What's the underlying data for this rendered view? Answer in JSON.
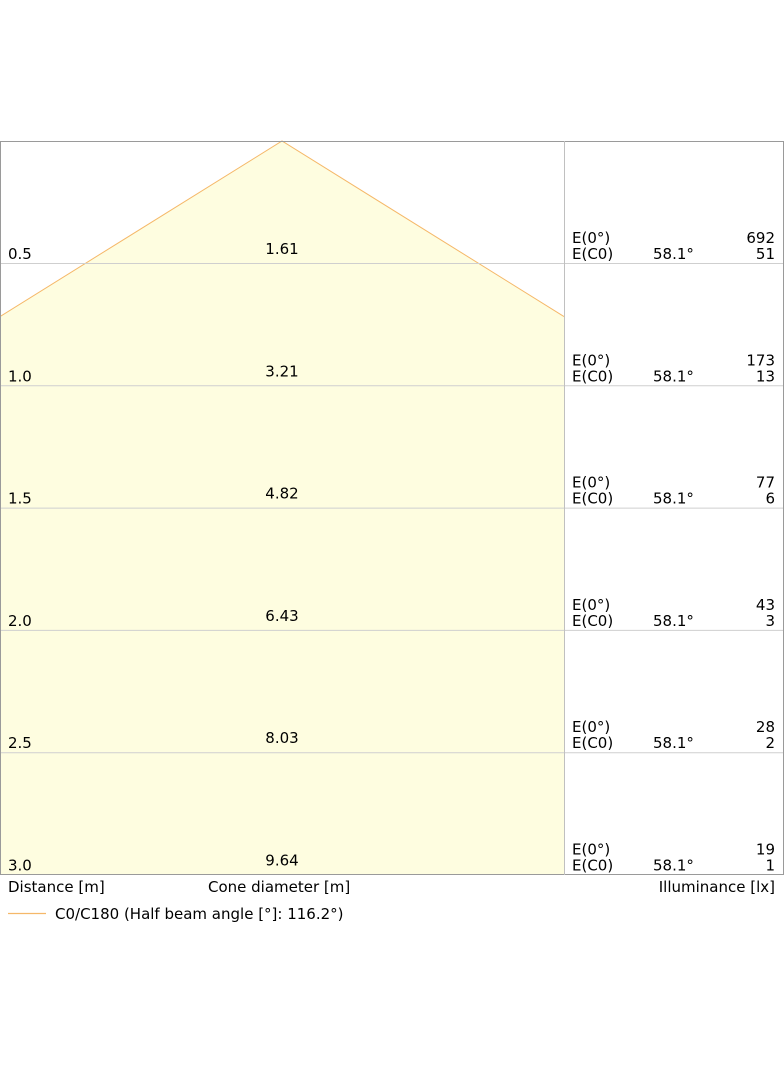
{
  "chart_data": {
    "type": "area",
    "title": "",
    "half_beam_angle_deg": 116.2,
    "distance_label": "Distance [m]",
    "cone_label": "Cone diameter [m]",
    "illuminance_label": "Illuminance [lx]",
    "e0_label": "E(0°)",
    "ec0_label": "E(C0)",
    "fill_color": "#fefde0",
    "outline_color": "#f5b869",
    "rows": [
      {
        "distance": "0.5",
        "diameter": "1.61",
        "angle": "58.1°",
        "e0": "692",
        "ec0": "51"
      },
      {
        "distance": "1.0",
        "diameter": "3.21",
        "angle": "58.1°",
        "e0": "173",
        "ec0": "13"
      },
      {
        "distance": "1.5",
        "diameter": "4.82",
        "angle": "58.1°",
        "e0": "77",
        "ec0": "6"
      },
      {
        "distance": "2.0",
        "diameter": "6.43",
        "angle": "58.1°",
        "e0": "43",
        "ec0": "3"
      },
      {
        "distance": "2.5",
        "diameter": "8.03",
        "angle": "58.1°",
        "e0": "28",
        "ec0": "2"
      },
      {
        "distance": "3.0",
        "diameter": "9.64",
        "angle": "58.1°",
        "e0": "19",
        "ec0": "1"
      }
    ],
    "legend": {
      "label": "C0/C180 (Half beam angle [°]: 116.2°)"
    }
  }
}
